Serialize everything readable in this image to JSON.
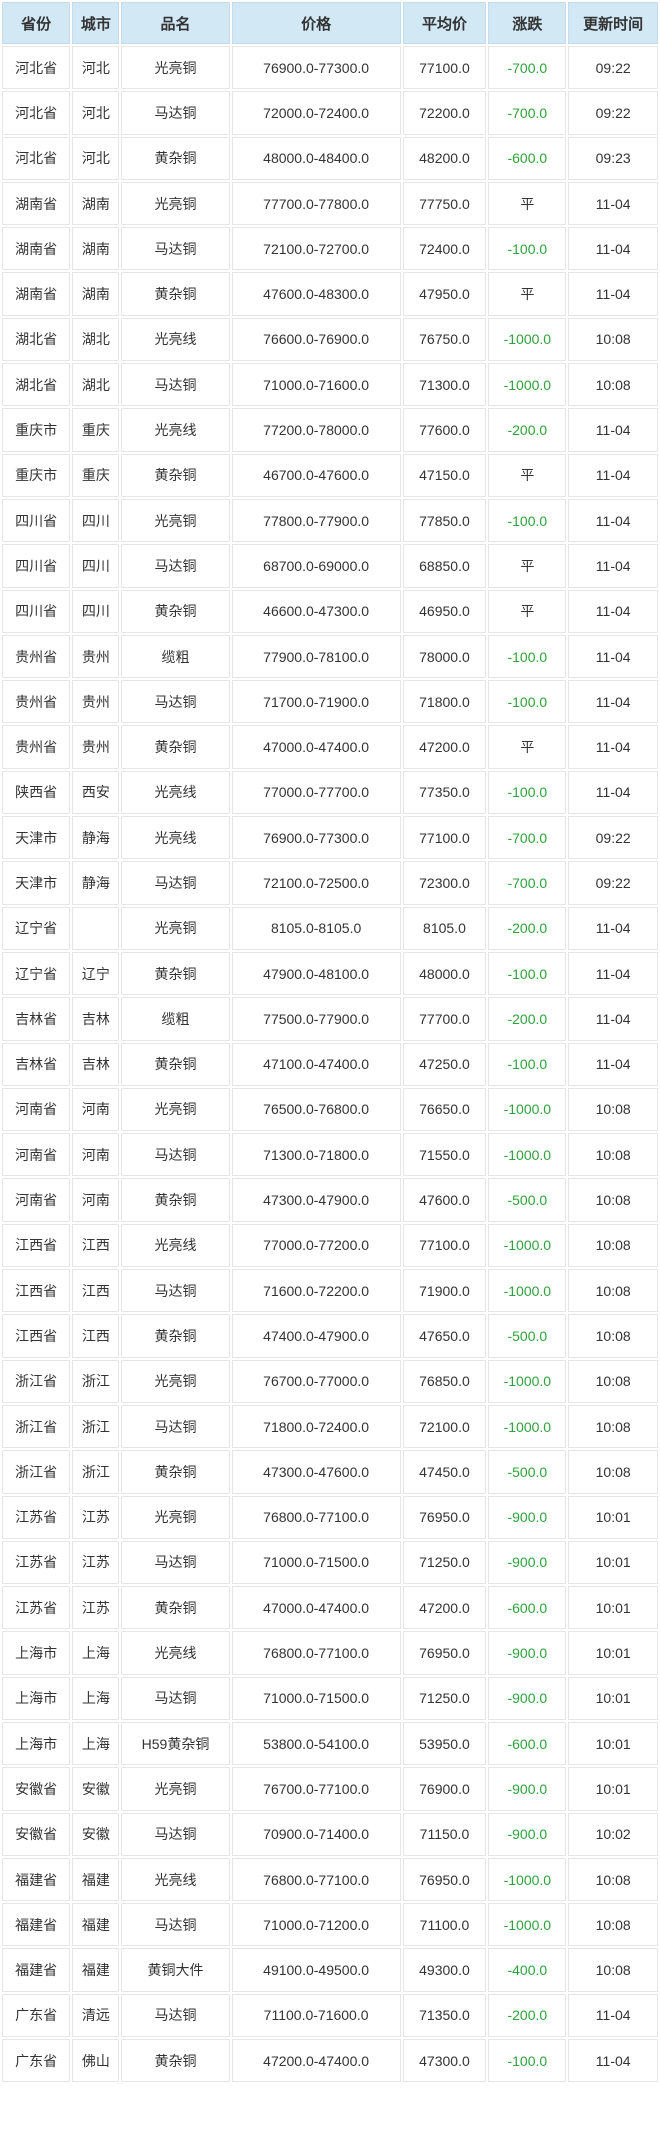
{
  "colors": {
    "header_bg": "#d2e8f5",
    "down_change": "#2ea33c",
    "text": "#333333",
    "grid_border": "#e6e6e6"
  },
  "table": {
    "columns": [
      {
        "key": "province",
        "label": "省份"
      },
      {
        "key": "city",
        "label": "城市"
      },
      {
        "key": "product",
        "label": "品名"
      },
      {
        "key": "price",
        "label": "价格"
      },
      {
        "key": "avg",
        "label": "平均价"
      },
      {
        "key": "change",
        "label": "涨跌"
      },
      {
        "key": "time",
        "label": "更新时间"
      }
    ],
    "rows": [
      [
        "河北省",
        "河北",
        "光亮铜",
        "76900.0-77300.0",
        "77100.0",
        "-700.0",
        "09:22"
      ],
      [
        "河北省",
        "河北",
        "马达铜",
        "72000.0-72400.0",
        "72200.0",
        "-700.0",
        "09:22"
      ],
      [
        "河北省",
        "河北",
        "黄杂铜",
        "48000.0-48400.0",
        "48200.0",
        "-600.0",
        "09:23"
      ],
      [
        "湖南省",
        "湖南",
        "光亮铜",
        "77700.0-77800.0",
        "77750.0",
        "平",
        "11-04"
      ],
      [
        "湖南省",
        "湖南",
        "马达铜",
        "72100.0-72700.0",
        "72400.0",
        "-100.0",
        "11-04"
      ],
      [
        "湖南省",
        "湖南",
        "黄杂铜",
        "47600.0-48300.0",
        "47950.0",
        "平",
        "11-04"
      ],
      [
        "湖北省",
        "湖北",
        "光亮线",
        "76600.0-76900.0",
        "76750.0",
        "-1000.0",
        "10:08"
      ],
      [
        "湖北省",
        "湖北",
        "马达铜",
        "71000.0-71600.0",
        "71300.0",
        "-1000.0",
        "10:08"
      ],
      [
        "重庆市",
        "重庆",
        "光亮线",
        "77200.0-78000.0",
        "77600.0",
        "-200.0",
        "11-04"
      ],
      [
        "重庆市",
        "重庆",
        "黄杂铜",
        "46700.0-47600.0",
        "47150.0",
        "平",
        "11-04"
      ],
      [
        "四川省",
        "四川",
        "光亮铜",
        "77800.0-77900.0",
        "77850.0",
        "-100.0",
        "11-04"
      ],
      [
        "四川省",
        "四川",
        "马达铜",
        "68700.0-69000.0",
        "68850.0",
        "平",
        "11-04"
      ],
      [
        "四川省",
        "四川",
        "黄杂铜",
        "46600.0-47300.0",
        "46950.0",
        "平",
        "11-04"
      ],
      [
        "贵州省",
        "贵州",
        "缆粗",
        "77900.0-78100.0",
        "78000.0",
        "-100.0",
        "11-04"
      ],
      [
        "贵州省",
        "贵州",
        "马达铜",
        "71700.0-71900.0",
        "71800.0",
        "-100.0",
        "11-04"
      ],
      [
        "贵州省",
        "贵州",
        "黄杂铜",
        "47000.0-47400.0",
        "47200.0",
        "平",
        "11-04"
      ],
      [
        "陕西省",
        "西安",
        "光亮线",
        "77000.0-77700.0",
        "77350.0",
        "-100.0",
        "11-04"
      ],
      [
        "天津市",
        "静海",
        "光亮线",
        "76900.0-77300.0",
        "77100.0",
        "-700.0",
        "09:22"
      ],
      [
        "天津市",
        "静海",
        "马达铜",
        "72100.0-72500.0",
        "72300.0",
        "-700.0",
        "09:22"
      ],
      [
        "辽宁省",
        "",
        "光亮铜",
        "8105.0-8105.0",
        "8105.0",
        "-200.0",
        "11-04"
      ],
      [
        "辽宁省",
        "辽宁",
        "黄杂铜",
        "47900.0-48100.0",
        "48000.0",
        "-100.0",
        "11-04"
      ],
      [
        "吉林省",
        "吉林",
        "缆粗",
        "77500.0-77900.0",
        "77700.0",
        "-200.0",
        "11-04"
      ],
      [
        "吉林省",
        "吉林",
        "黄杂铜",
        "47100.0-47400.0",
        "47250.0",
        "-100.0",
        "11-04"
      ],
      [
        "河南省",
        "河南",
        "光亮铜",
        "76500.0-76800.0",
        "76650.0",
        "-1000.0",
        "10:08"
      ],
      [
        "河南省",
        "河南",
        "马达铜",
        "71300.0-71800.0",
        "71550.0",
        "-1000.0",
        "10:08"
      ],
      [
        "河南省",
        "河南",
        "黄杂铜",
        "47300.0-47900.0",
        "47600.0",
        "-500.0",
        "10:08"
      ],
      [
        "江西省",
        "江西",
        "光亮线",
        "77000.0-77200.0",
        "77100.0",
        "-1000.0",
        "10:08"
      ],
      [
        "江西省",
        "江西",
        "马达铜",
        "71600.0-72200.0",
        "71900.0",
        "-1000.0",
        "10:08"
      ],
      [
        "江西省",
        "江西",
        "黄杂铜",
        "47400.0-47900.0",
        "47650.0",
        "-500.0",
        "10:08"
      ],
      [
        "浙江省",
        "浙江",
        "光亮铜",
        "76700.0-77000.0",
        "76850.0",
        "-1000.0",
        "10:08"
      ],
      [
        "浙江省",
        "浙江",
        "马达铜",
        "71800.0-72400.0",
        "72100.0",
        "-1000.0",
        "10:08"
      ],
      [
        "浙江省",
        "浙江",
        "黄杂铜",
        "47300.0-47600.0",
        "47450.0",
        "-500.0",
        "10:08"
      ],
      [
        "江苏省",
        "江苏",
        "光亮铜",
        "76800.0-77100.0",
        "76950.0",
        "-900.0",
        "10:01"
      ],
      [
        "江苏省",
        "江苏",
        "马达铜",
        "71000.0-71500.0",
        "71250.0",
        "-900.0",
        "10:01"
      ],
      [
        "江苏省",
        "江苏",
        "黄杂铜",
        "47000.0-47400.0",
        "47200.0",
        "-600.0",
        "10:01"
      ],
      [
        "上海市",
        "上海",
        "光亮线",
        "76800.0-77100.0",
        "76950.0",
        "-900.0",
        "10:01"
      ],
      [
        "上海市",
        "上海",
        "马达铜",
        "71000.0-71500.0",
        "71250.0",
        "-900.0",
        "10:01"
      ],
      [
        "上海市",
        "上海",
        "H59黄杂铜",
        "53800.0-54100.0",
        "53950.0",
        "-600.0",
        "10:01"
      ],
      [
        "安徽省",
        "安徽",
        "光亮铜",
        "76700.0-77100.0",
        "76900.0",
        "-900.0",
        "10:01"
      ],
      [
        "安徽省",
        "安徽",
        "马达铜",
        "70900.0-71400.0",
        "71150.0",
        "-900.0",
        "10:02"
      ],
      [
        "福建省",
        "福建",
        "光亮线",
        "76800.0-77100.0",
        "76950.0",
        "-1000.0",
        "10:08"
      ],
      [
        "福建省",
        "福建",
        "马达铜",
        "71000.0-71200.0",
        "71100.0",
        "-1000.0",
        "10:08"
      ],
      [
        "福建省",
        "福建",
        "黄铜大件",
        "49100.0-49500.0",
        "49300.0",
        "-400.0",
        "10:08"
      ],
      [
        "广东省",
        "清远",
        "马达铜",
        "71100.0-71600.0",
        "71350.0",
        "-200.0",
        "11-04"
      ],
      [
        "广东省",
        "佛山",
        "黄杂铜",
        "47200.0-47400.0",
        "47300.0",
        "-100.0",
        "11-04"
      ]
    ]
  }
}
